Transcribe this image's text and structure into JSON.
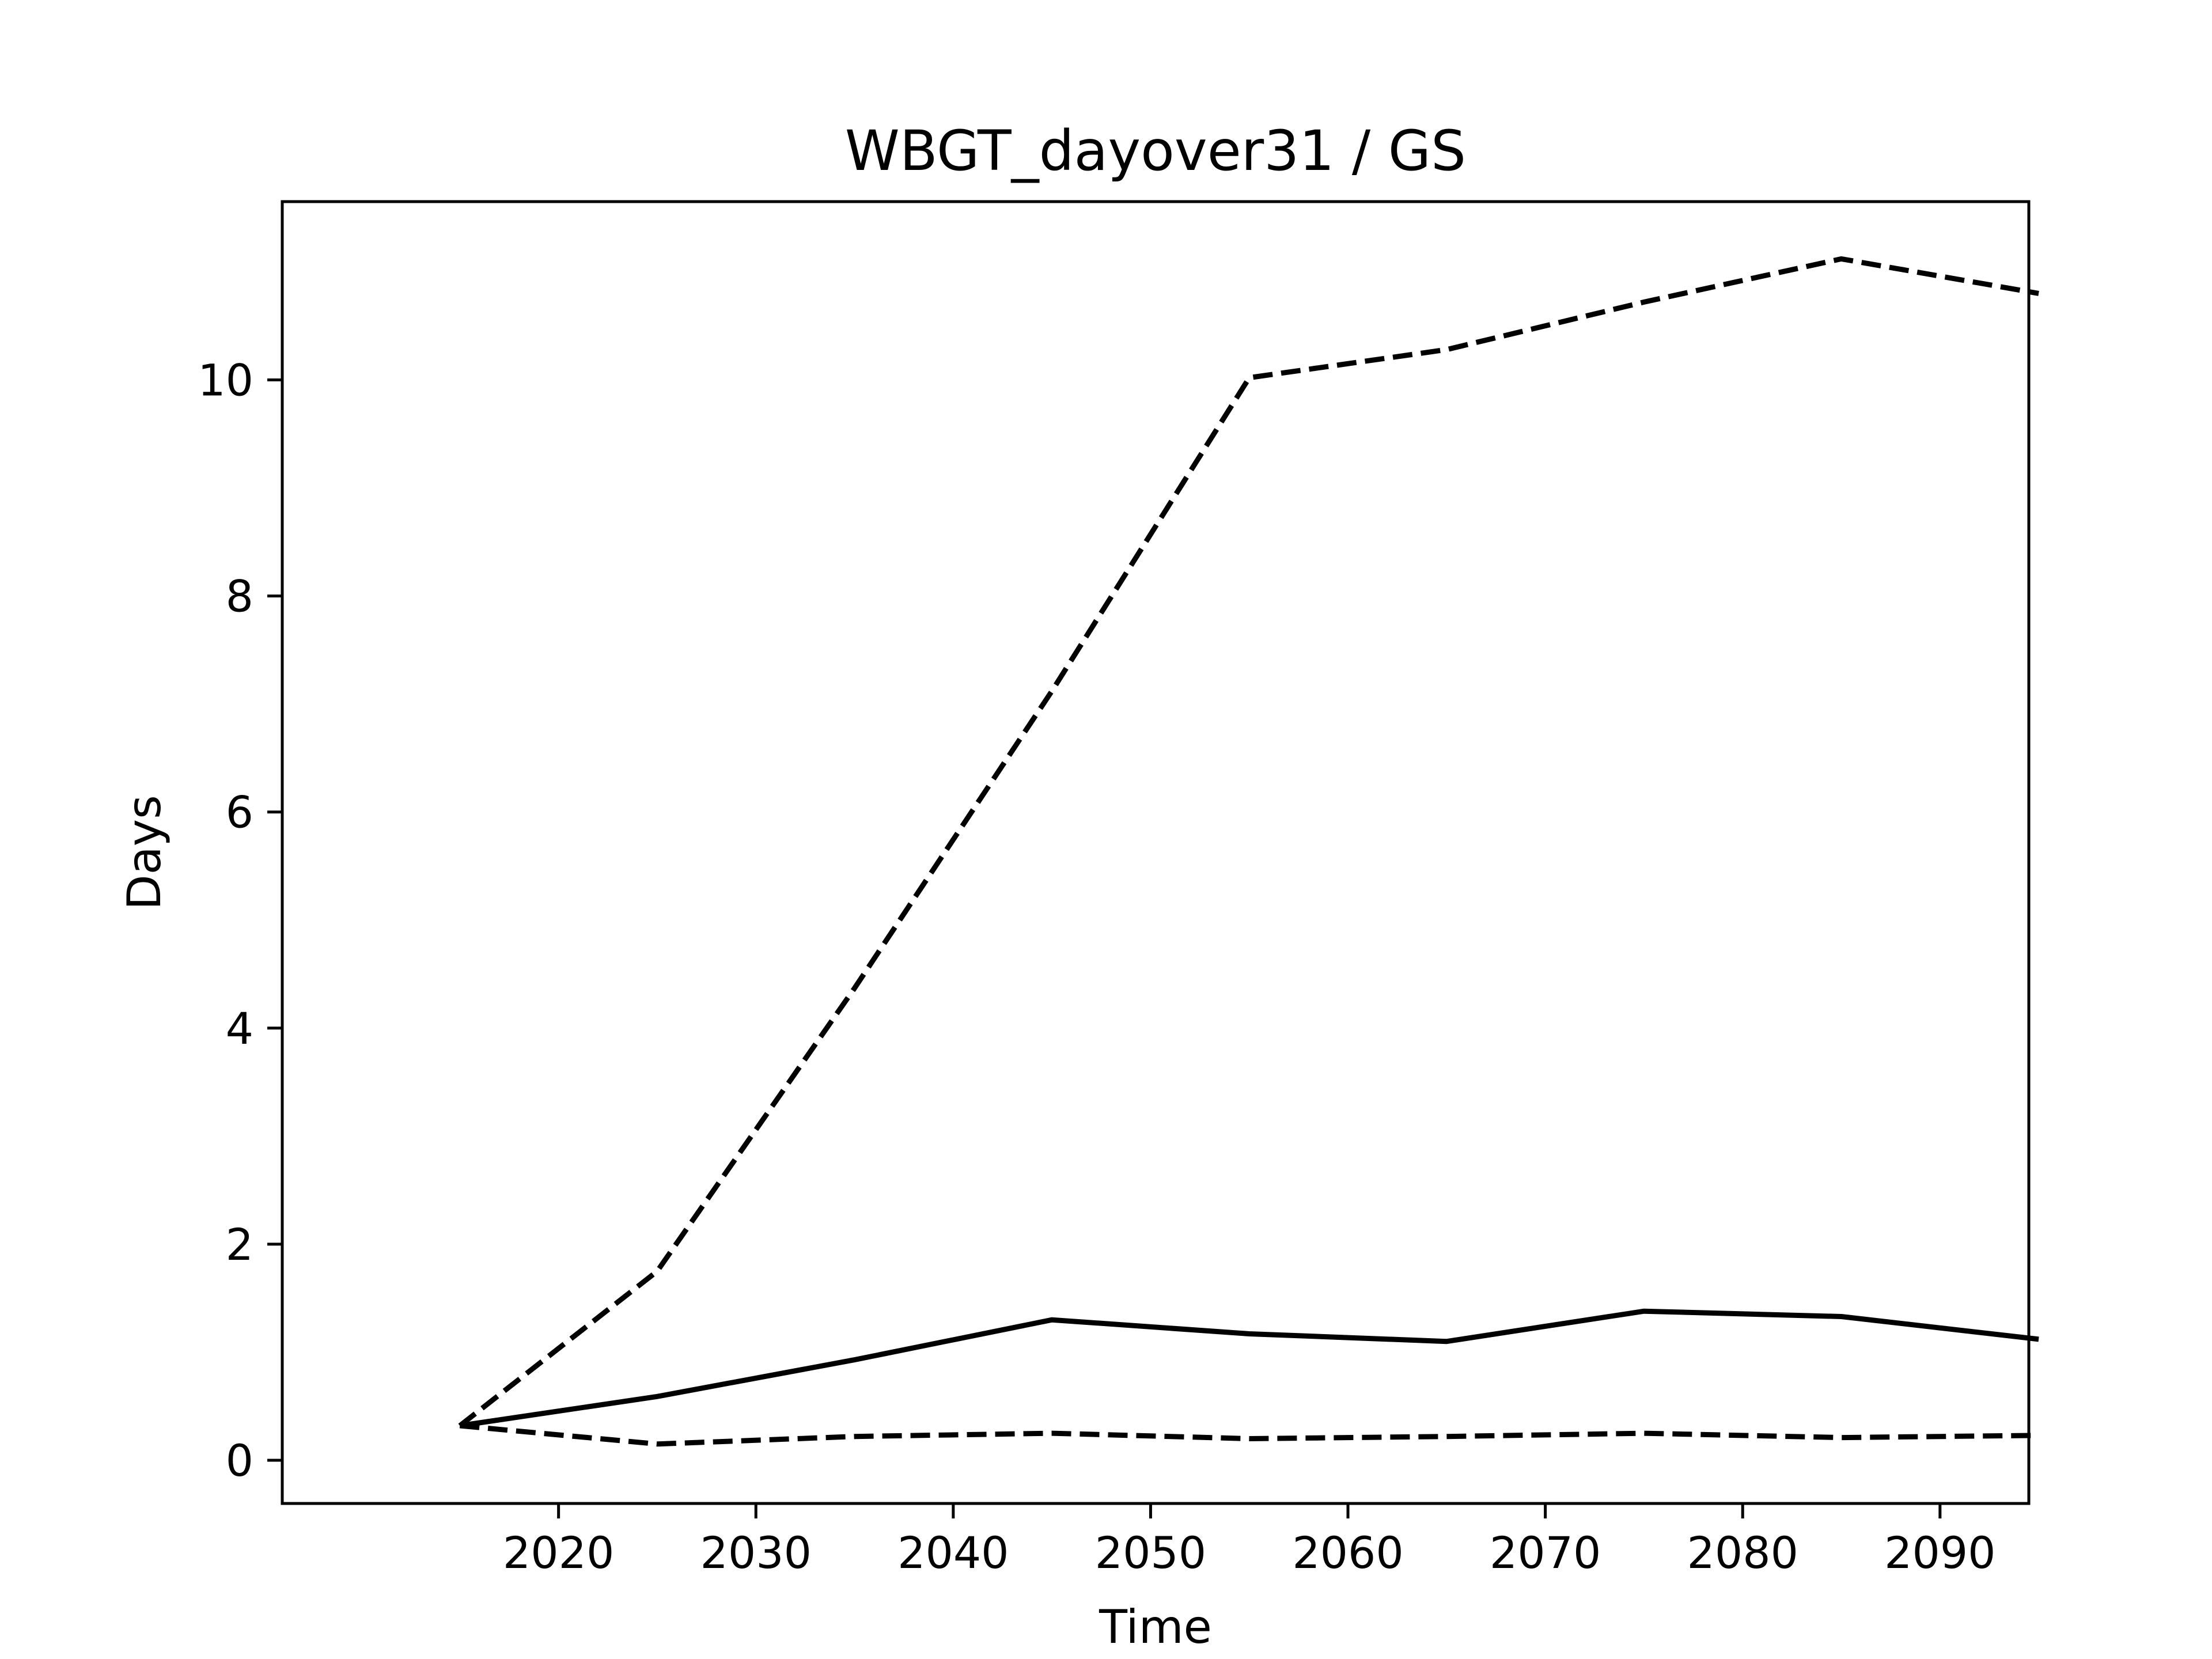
{
  "chart_data": {
    "type": "line",
    "title": "WBGT_dayover31 / GS",
    "xlabel": "Time",
    "ylabel": "Days",
    "x": [
      2015,
      2025,
      2035,
      2045,
      2055,
      2065,
      2075,
      2085,
      2095
    ],
    "xlim": [
      2006,
      2094.5
    ],
    "ylim": [
      -0.4,
      11.65
    ],
    "xticks": [
      2020,
      2030,
      2040,
      2050,
      2060,
      2070,
      2080,
      2090
    ],
    "yticks": [
      0,
      2,
      4,
      6,
      8,
      10
    ],
    "grid": false,
    "line_color": "#000000",
    "series": [
      {
        "style": "solid",
        "values": [
          0.32,
          0.59,
          0.93,
          1.3,
          1.17,
          1.1,
          1.38,
          1.33,
          1.12
        ]
      },
      {
        "style": "dashed",
        "values": [
          0.32,
          1.75,
          4.37,
          7.12,
          10.02,
          10.28,
          10.72,
          11.12,
          10.8
        ]
      },
      {
        "style": "dashed",
        "values": [
          0.32,
          0.15,
          0.22,
          0.25,
          0.2,
          0.22,
          0.25,
          0.21,
          0.23
        ]
      }
    ]
  }
}
